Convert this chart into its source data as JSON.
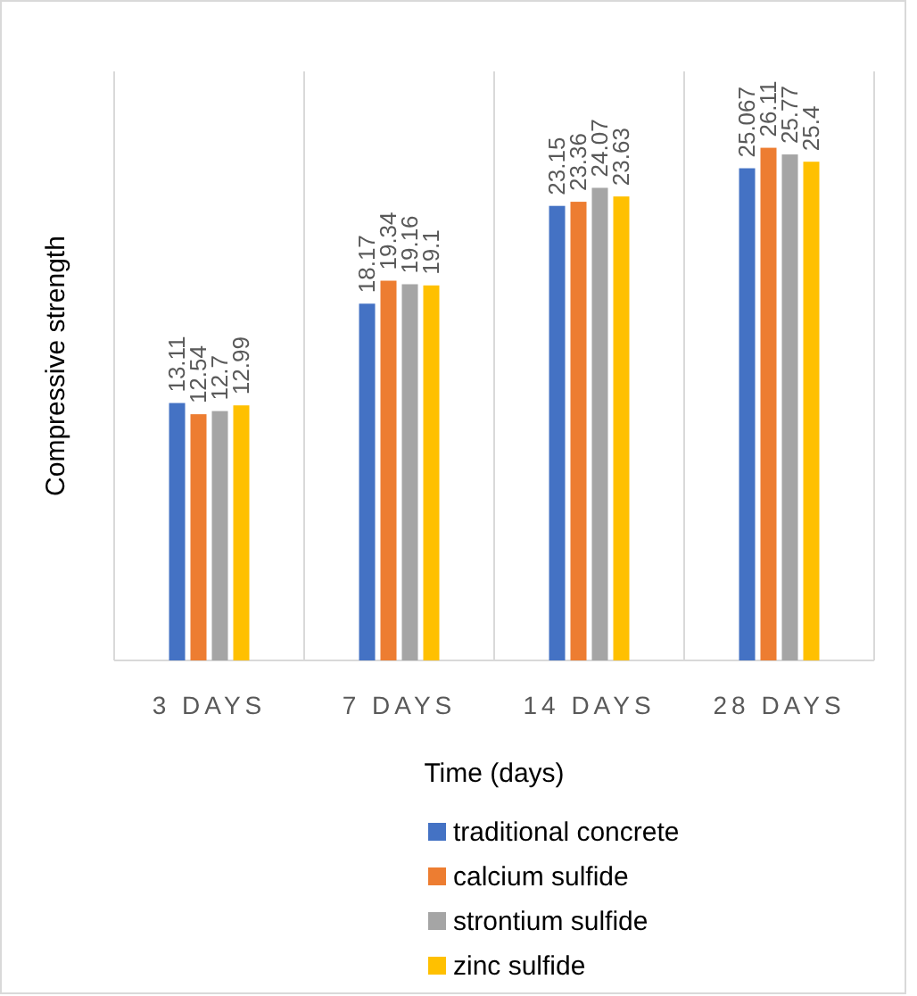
{
  "chart_data": {
    "type": "bar",
    "xlabel": "Time (days)",
    "ylabel": "Compressive strength",
    "categories": [
      "3 DAYS",
      "7 DAYS",
      "14 DAYS",
      "28 DAYS"
    ],
    "series": [
      {
        "name": "traditional concrete",
        "color": "#4472c4",
        "values": [
          13.11,
          18.17,
          23.15,
          25.067
        ]
      },
      {
        "name": "calcium sulfide",
        "color": "#ed7d31",
        "values": [
          12.54,
          19.34,
          23.36,
          26.11
        ]
      },
      {
        "name": "strontium sulfide",
        "color": "#a5a5a5",
        "values": [
          12.7,
          19.16,
          24.07,
          25.77
        ]
      },
      {
        "name": "zinc sulfide",
        "color": "#ffc000",
        "values": [
          12.99,
          19.1,
          23.63,
          25.4
        ]
      }
    ],
    "ylim": [
      0,
      30
    ],
    "tick_labels": "x",
    "data_labels": true,
    "grid": "x",
    "legend": "bottom"
  }
}
